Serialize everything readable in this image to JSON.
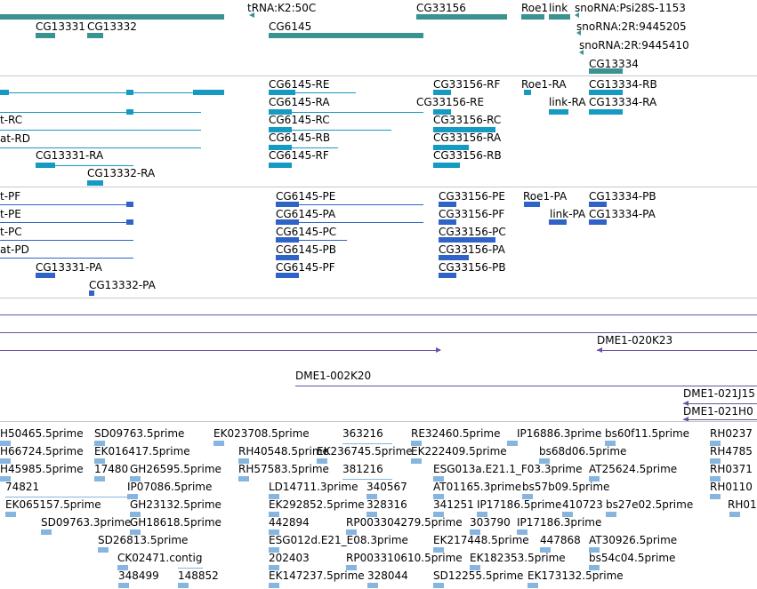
{
  "colors": {
    "top": "#3a9390",
    "top_arrow": "#2a8a87",
    "transcript1": "#159ac2",
    "transcript2": "#2f63c7",
    "contig": "#6c4fa3",
    "est": "#86b6e0",
    "separator": "#c8c8c8"
  },
  "tracks": {
    "genes": {
      "labels": [
        "tRNA:K2:50C",
        "CG33156",
        "Roe1",
        "link",
        "snoRNA:Psi28S-1153",
        "CG13331",
        "CG13332",
        "CG6145",
        "snoRNA:2R:9445205",
        "snoRNA:2R:9445410",
        "CG13334"
      ]
    },
    "transcripts1": {
      "labels": [
        "CG6145-RE",
        "CG33156-RF",
        "Roe1-RA",
        "CG13334-RB",
        "CG6145-RA",
        "CG33156-RE",
        "link-RA",
        "CG13334-RA",
        "t-RC",
        "CG6145-RC",
        "CG33156-RC",
        "at-RD",
        "CG6145-RB",
        "CG33156-RA",
        "CG13331-RA",
        "CG6145-RF",
        "CG33156-RB",
        "CG13332-RA"
      ]
    },
    "transcripts2": {
      "labels": [
        "t-PF",
        "CG6145-PE",
        "CG33156-PE",
        "Roe1-PA",
        "CG13334-PB",
        "t-PE",
        "CG6145-PA",
        "CG33156-PF",
        "link-PA",
        "CG13334-PA",
        "t-PC",
        "CG6145-PC",
        "CG33156-PC",
        "at-PD",
        "CG6145-PB",
        "CG33156-PA",
        "CG13331-PA",
        "CG6145-PF",
        "CG33156-PB",
        "CG13332-PA"
      ]
    },
    "contigs": {
      "labels": [
        "DME1-020K23",
        "DME1-002K20",
        "DME1-021J15",
        "DME1-021H0"
      ]
    },
    "ests": {
      "labels": [
        "H50465.5prime",
        "SD09763.5prime",
        "EK023708.5prime",
        "363216",
        "RE32460.5prime",
        "IP16886.3prime",
        "bs60f11.5prime",
        "RH0237",
        "H66724.5prime",
        "EK016417.5prime",
        "RH40548.5prime",
        "EK236745.5prime",
        "EK222409.5prime",
        "bs68d06.5prime",
        "RH4785",
        "H45985.5prime",
        "17480",
        "GH26595.5prime",
        "RH57583.5prime",
        "381216",
        "ESG013a.E21.1_F03.3prime",
        "AT25624.5prime",
        "RH0371",
        "74821",
        "IP07086.5prime",
        "LD14711.3prime",
        "340567",
        "AT01165.3prime",
        "bs57b09.5prime",
        "RH0110",
        "EK065157.5prime",
        "GH23132.5prime",
        "EK292852.5prime",
        "328316",
        "341251",
        "IP17186.5prime",
        "410723",
        "bs27e02.5prime",
        "RH01",
        "SD09763.3prime",
        "GH18618.5prime",
        "442894",
        "RP003304279.5prime",
        "303790",
        "IP17186.3prime",
        "SD26813.5prime",
        "ESG012d.E21_E08.3prime",
        "EK217448.5prime",
        "447868",
        "AT30926.5prime",
        "CK02471.contig",
        "202403",
        "RP003310610.5prime",
        "EK182353.5prime",
        "bs54c04.5prime",
        "348499",
        "148852",
        "EK147237.5prime",
        "328044",
        "SD12255.5prime",
        "EK173132.5prime"
      ]
    }
  }
}
